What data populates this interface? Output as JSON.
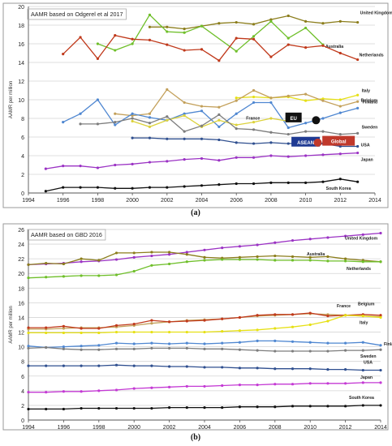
{
  "chart_data": [
    {
      "type": "line",
      "title": "AAMR based on Odgerel et al 2017",
      "ylabel": "AAMR per million",
      "xlabel": "",
      "panel_label": "(a)",
      "xlim": [
        1994,
        2014
      ],
      "ylim": [
        0,
        20
      ],
      "xticks": [
        "1994",
        "1996",
        "1998",
        "2000",
        "2002",
        "2004",
        "2006",
        "2008",
        "2010",
        "2012",
        "2014"
      ],
      "yticks": [
        "0",
        "2",
        "4",
        "6",
        "8",
        "10",
        "12",
        "14",
        "16",
        "18",
        "20"
      ],
      "grid": true,
      "series": [
        {
          "name": "United Kingdom",
          "color": "#8b7d1b",
          "x": [
            2001,
            2002,
            2003,
            2004,
            2005,
            2006,
            2007,
            2008,
            2009,
            2010,
            2011,
            2012,
            2013
          ],
          "y": [
            17.8,
            17.8,
            17.6,
            17.9,
            18.2,
            18.3,
            18.1,
            18.6,
            19.0,
            18.4,
            18.2,
            18.4,
            18.3
          ]
        },
        {
          "name": "Australia",
          "color": "#6fbf2a",
          "x": [
            1998,
            1999,
            2000,
            2001,
            2002,
            2003,
            2004,
            2006,
            2007,
            2008,
            2009,
            2010,
            2011
          ],
          "y": [
            16.0,
            15.3,
            16.0,
            19.1,
            17.3,
            17.2,
            17.9,
            15.2,
            16.8,
            18.4,
            16.6,
            17.7,
            15.9
          ]
        },
        {
          "name": "Netherlands",
          "color": "#c0391b",
          "x": [
            1996,
            1997,
            1998,
            1999,
            2000,
            2001,
            2002,
            2003,
            2004,
            2005,
            2006,
            2007,
            2008,
            2009,
            2010,
            2011,
            2012,
            2013
          ],
          "y": [
            14.9,
            16.7,
            14.4,
            16.9,
            16.5,
            16.4,
            15.9,
            15.3,
            15.4,
            14.2,
            16.6,
            16.5,
            14.6,
            15.9,
            15.6,
            15.8,
            15.0,
            14.3
          ]
        },
        {
          "name": "Italy",
          "color": "#e6e015",
          "x": [
            2006,
            2007,
            2008,
            2009,
            2010,
            2011,
            2012,
            2013
          ],
          "y": [
            10.2,
            10.3,
            10.2,
            10.3,
            9.9,
            10.1,
            10.0,
            10.5
          ]
        },
        {
          "name": "Belgium",
          "color": "#c3a05a",
          "x": [
            1999,
            2000,
            2001,
            2002,
            2003,
            2004,
            2005,
            2006,
            2007,
            2008,
            2009,
            2010,
            2011,
            2012,
            2013
          ],
          "y": [
            8.5,
            8.3,
            8.5,
            11.1,
            9.7,
            9.3,
            9.2,
            9.9,
            11.0,
            10.2,
            10.4,
            10.6,
            9.9,
            9.3,
            9.8
          ]
        },
        {
          "name": "Finland",
          "color": "#4f87d1",
          "x": [
            1996,
            1997,
            1998,
            1999,
            2000,
            2001,
            2002,
            2003,
            2004,
            2005,
            2006,
            2007,
            2008,
            2009,
            2010,
            2011,
            2012,
            2013
          ],
          "y": [
            7.6,
            8.5,
            10.0,
            7.3,
            8.5,
            8.1,
            7.8,
            8.5,
            8.8,
            7.1,
            8.5,
            9.7,
            9.7,
            7.0,
            7.5,
            8.0,
            8.6,
            9.1
          ]
        },
        {
          "name": "France",
          "color": "#dcd23c",
          "x": [
            2000,
            2001,
            2002,
            2003,
            2004,
            2005,
            2006,
            2007,
            2008,
            2009
          ],
          "y": [
            7.7,
            7.1,
            7.8,
            8.3,
            7.1,
            7.8,
            7.3,
            7.6,
            8.0,
            7.7
          ]
        },
        {
          "name": "Sweden",
          "color": "#7d7d7d",
          "x": [
            1997,
            1998,
            1999,
            2000,
            2001,
            2002,
            2003,
            2004,
            2005,
            2006,
            2007,
            2008,
            2009,
            2010,
            2011,
            2012,
            2013
          ],
          "y": [
            7.4,
            7.4,
            7.6,
            8.0,
            7.5,
            8.2,
            6.6,
            7.2,
            8.4,
            6.9,
            6.8,
            6.5,
            6.3,
            6.6,
            6.6,
            6.3,
            6.4
          ]
        },
        {
          "name": "USA",
          "color": "#2f4f8f",
          "x": [
            2000,
            2001,
            2002,
            2003,
            2004,
            2005,
            2006,
            2007,
            2008,
            2009,
            2010,
            2011,
            2012,
            2013
          ],
          "y": [
            5.9,
            5.9,
            5.8,
            5.8,
            5.8,
            5.7,
            5.4,
            5.3,
            5.4,
            5.3,
            5.4,
            5.3,
            5.0,
            5.0
          ]
        },
        {
          "name": "Japan",
          "color": "#9b33c4",
          "x": [
            1995,
            1996,
            1997,
            1998,
            1999,
            2000,
            2001,
            2002,
            2003,
            2004,
            2005,
            2006,
            2007,
            2008,
            2009,
            2010,
            2011,
            2012,
            2013
          ],
          "y": [
            2.6,
            2.9,
            2.9,
            2.7,
            3.0,
            3.1,
            3.3,
            3.4,
            3.6,
            3.7,
            3.5,
            3.8,
            3.8,
            4.0,
            3.9,
            4.0,
            4.1,
            4.2,
            4.3
          ]
        },
        {
          "name": "South Korea",
          "color": "#111111",
          "x": [
            1995,
            1996,
            1997,
            1998,
            1999,
            2000,
            2001,
            2002,
            2003,
            2004,
            2005,
            2006,
            2007,
            2008,
            2009,
            2010,
            2011,
            2012,
            2013
          ],
          "y": [
            0.2,
            0.6,
            0.6,
            0.6,
            0.5,
            0.5,
            0.6,
            0.6,
            0.7,
            0.8,
            0.9,
            1.0,
            1.0,
            1.1,
            1.1,
            1.1,
            1.2,
            1.5,
            1.2
          ]
        }
      ],
      "annotations": [
        {
          "label": "EU",
          "type": "box",
          "x": 2009.3,
          "y": 8.1,
          "color": "#111111",
          "text_color": "#ffffff"
        },
        {
          "label": "",
          "type": "dot",
          "x": 2010.6,
          "y": 7.8,
          "color": "#111111"
        },
        {
          "label": "ASEAN",
          "type": "box",
          "x": 2010.0,
          "y": 5.5,
          "color": "#1f3a93",
          "text_color": "#ffffff"
        },
        {
          "label": "",
          "type": "dot",
          "x": 2010.7,
          "y": 5.4,
          "color": "#c0392b"
        },
        {
          "label": "Global",
          "type": "box",
          "x": 2011.9,
          "y": 5.6,
          "color": "#c0392b",
          "text_color": "#ffffff"
        }
      ]
    },
    {
      "type": "line",
      "title": "AAMR based on GBD 2016",
      "ylabel": "AAMR per million",
      "xlabel": "",
      "panel_label": "(b)",
      "xlim": [
        1994,
        2014
      ],
      "ylim": [
        0,
        26
      ],
      "xticks": [
        "1994",
        "1996",
        "1998",
        "2000",
        "2002",
        "2004",
        "2006",
        "2008",
        "2010",
        "2012",
        "2014"
      ],
      "yticks": [
        "0",
        "2",
        "4",
        "6",
        "8",
        "10",
        "12",
        "14",
        "16",
        "18",
        "20",
        "22",
        "24",
        "26"
      ],
      "grid": true,
      "series": [
        {
          "name": "United Kingdom",
          "color": "#9b33c4",
          "x": [
            1994,
            1995,
            1996,
            1997,
            1998,
            1999,
            2000,
            2001,
            2002,
            2003,
            2004,
            2005,
            2006,
            2007,
            2008,
            2009,
            2010,
            2011,
            2012,
            2013,
            2014
          ],
          "y": [
            21.2,
            21.3,
            21.4,
            21.6,
            21.7,
            21.9,
            22.2,
            22.4,
            22.6,
            22.9,
            23.2,
            23.5,
            23.7,
            23.9,
            24.2,
            24.5,
            24.7,
            24.9,
            25.1,
            25.3,
            25.5
          ]
        },
        {
          "name": "Australia",
          "color": "#8b7d1b",
          "x": [
            1994,
            1995,
            1996,
            1997,
            1998,
            1999,
            2000,
            2001,
            2002,
            2003,
            2004,
            2005,
            2006,
            2007,
            2008,
            2009,
            2010,
            2011,
            2012,
            2013,
            2014
          ],
          "y": [
            21.2,
            21.4,
            21.3,
            22.0,
            21.8,
            22.8,
            22.8,
            22.9,
            22.9,
            22.6,
            22.2,
            22.1,
            22.2,
            22.3,
            22.4,
            22.3,
            22.2,
            22.3,
            22.0,
            21.8,
            21.6
          ]
        },
        {
          "name": "Netherlands",
          "color": "#6fbf2a",
          "x": [
            1994,
            1995,
            1996,
            1997,
            1998,
            1999,
            2000,
            2001,
            2002,
            2003,
            2004,
            2005,
            2006,
            2007,
            2008,
            2009,
            2010,
            2011,
            2012,
            2013,
            2014
          ],
          "y": [
            19.4,
            19.5,
            19.6,
            19.7,
            19.7,
            19.8,
            20.3,
            21.1,
            21.3,
            21.6,
            21.8,
            21.9,
            21.9,
            21.9,
            21.8,
            21.8,
            21.8,
            21.7,
            21.7,
            21.6,
            21.6
          ]
        },
        {
          "name": "Belgium",
          "color": "#c3a05a",
          "x": [
            1994,
            1995,
            1996,
            1997,
            1998,
            1999,
            2000,
            2001,
            2002,
            2003,
            2004,
            2005,
            2006,
            2007,
            2008,
            2009,
            2010,
            2011,
            2012,
            2013,
            2014
          ],
          "y": [
            12.4,
            12.4,
            12.5,
            12.6,
            12.6,
            12.7,
            12.9,
            13.2,
            13.4,
            13.6,
            13.7,
            13.8,
            14.0,
            14.2,
            14.3,
            14.4,
            14.5,
            14.4,
            14.3,
            14.2,
            14.1
          ]
        },
        {
          "name": "France",
          "color": "#c0391b",
          "x": [
            1994,
            1995,
            1996,
            1997,
            1998,
            1999,
            2000,
            2001,
            2002,
            2003,
            2004,
            2005,
            2006,
            2007,
            2008,
            2009,
            2010,
            2011,
            2012,
            2013,
            2014
          ],
          "y": [
            12.6,
            12.6,
            12.8,
            12.5,
            12.5,
            12.9,
            13.1,
            13.6,
            13.4,
            13.5,
            13.6,
            13.8,
            14.0,
            14.3,
            14.4,
            14.4,
            14.6,
            14.2,
            14.3,
            14.4,
            14.3
          ]
        },
        {
          "name": "Italy",
          "color": "#e6e015",
          "x": [
            1994,
            1995,
            1996,
            1997,
            1998,
            1999,
            2000,
            2001,
            2002,
            2003,
            2004,
            2005,
            2006,
            2007,
            2008,
            2009,
            2010,
            2011,
            2012,
            2013,
            2014
          ],
          "y": [
            11.9,
            11.9,
            11.9,
            11.9,
            11.9,
            12.0,
            12.0,
            12.0,
            12.0,
            12.0,
            12.0,
            12.1,
            12.2,
            12.3,
            12.5,
            12.7,
            13.0,
            13.5,
            14.3,
            14.2,
            14.0
          ]
        },
        {
          "name": "Finland",
          "color": "#4f87d1",
          "x": [
            1994,
            1995,
            1996,
            1997,
            1998,
            1999,
            2000,
            2001,
            2002,
            2003,
            2004,
            2005,
            2006,
            2007,
            2008,
            2009,
            2010,
            2011,
            2012,
            2013,
            2014
          ],
          "y": [
            10.1,
            9.9,
            10.0,
            10.1,
            10.2,
            10.5,
            10.4,
            10.5,
            10.4,
            10.5,
            10.4,
            10.5,
            10.6,
            10.8,
            10.8,
            10.7,
            10.6,
            10.5,
            10.5,
            10.6,
            10.2
          ]
        },
        {
          "name": "Sweden",
          "color": "#7d7d7d",
          "x": [
            1994,
            1995,
            1996,
            1997,
            1998,
            1999,
            2000,
            2001,
            2002,
            2003,
            2004,
            2005,
            2006,
            2007,
            2008,
            2009,
            2010,
            2011,
            2012,
            2013,
            2014
          ],
          "y": [
            9.8,
            9.9,
            9.7,
            9.6,
            9.6,
            9.7,
            9.7,
            9.8,
            9.8,
            9.8,
            9.7,
            9.7,
            9.6,
            9.5,
            9.4,
            9.4,
            9.4,
            9.4,
            9.5,
            9.5,
            9.6
          ]
        },
        {
          "name": "USA",
          "color": "#2f4f8f",
          "x": [
            1994,
            1995,
            1996,
            1997,
            1998,
            1999,
            2000,
            2001,
            2002,
            2003,
            2004,
            2005,
            2006,
            2007,
            2008,
            2009,
            2010,
            2011,
            2012,
            2013,
            2014
          ],
          "y": [
            7.4,
            7.4,
            7.4,
            7.4,
            7.4,
            7.5,
            7.4,
            7.4,
            7.3,
            7.3,
            7.2,
            7.2,
            7.1,
            7.1,
            7.0,
            7.0,
            7.0,
            6.9,
            6.9,
            6.8,
            6.8
          ]
        },
        {
          "name": "Japan",
          "color": "#c43ad4",
          "x": [
            1994,
            1995,
            1996,
            1997,
            1998,
            1999,
            2000,
            2001,
            2002,
            2003,
            2004,
            2005,
            2006,
            2007,
            2008,
            2009,
            2010,
            2011,
            2012,
            2013,
            2014
          ],
          "y": [
            3.8,
            3.8,
            3.9,
            3.9,
            4.0,
            4.1,
            4.3,
            4.4,
            4.5,
            4.6,
            4.6,
            4.7,
            4.8,
            4.8,
            4.9,
            4.9,
            5.0,
            5.0,
            5.0,
            5.1,
            5.1
          ]
        },
        {
          "name": "South Korea",
          "color": "#111111",
          "x": [
            1994,
            1995,
            1996,
            1997,
            1998,
            1999,
            2000,
            2001,
            2002,
            2003,
            2004,
            2005,
            2006,
            2007,
            2008,
            2009,
            2010,
            2011,
            2012,
            2013,
            2014
          ],
          "y": [
            1.5,
            1.5,
            1.5,
            1.6,
            1.6,
            1.6,
            1.6,
            1.6,
            1.7,
            1.7,
            1.7,
            1.7,
            1.8,
            1.8,
            1.8,
            1.9,
            1.9,
            1.9,
            1.9,
            2.0,
            2.0
          ]
        }
      ]
    }
  ]
}
